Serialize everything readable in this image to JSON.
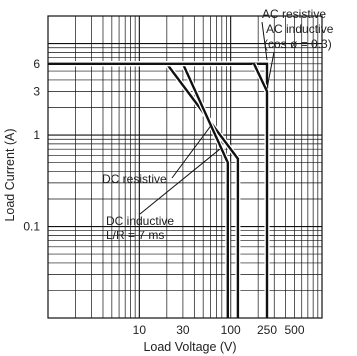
{
  "chart_data": {
    "type": "line",
    "xlabel": "Load Voltage (V)",
    "ylabel": "Load Current (A)",
    "x_scale": "log",
    "y_scale": "log",
    "xlim": [
      1,
      1000
    ],
    "ylim": [
      0.01,
      20
    ],
    "grid": true,
    "x_tick_labels": [
      {
        "value": 10,
        "label": "10"
      },
      {
        "value": 30,
        "label": "30"
      },
      {
        "value": 100,
        "label": "100"
      },
      {
        "value": 250,
        "label": "250"
      },
      {
        "value": 500,
        "label": "500"
      }
    ],
    "y_tick_labels": [
      {
        "value": 6,
        "label": "6"
      },
      {
        "value": 3,
        "label": "3"
      },
      {
        "value": 1,
        "label": "1"
      },
      {
        "value": 0.1,
        "label": "0.1"
      }
    ],
    "series": [
      {
        "name": "DC resistive",
        "x": [
          1,
          20,
          120,
          120
        ],
        "y": [
          6,
          6,
          0.55,
          0.01
        ]
      },
      {
        "name": "DC inductive L/R = 7 ms",
        "x": [
          1,
          30,
          93,
          93
        ],
        "y": [
          6,
          6,
          0.5,
          0.01
        ]
      },
      {
        "name": "AC resistive",
        "x": [
          1,
          250,
          250
        ],
        "y": [
          6,
          6,
          0.01
        ]
      },
      {
        "name": "AC inductive (cos ø = 0.3)",
        "x": [
          180,
          250,
          250
        ],
        "y": [
          6,
          3,
          0.01
        ]
      }
    ],
    "annotations": {
      "ac_resistive": "AC resistive",
      "ac_inductive_1": "AC inductive",
      "ac_inductive_2": "(cos ø = 0.3)",
      "dc_resistive": "DC resistive",
      "dc_inductive_1": "DC inductive",
      "dc_inductive_2": "L/R = 7 ms"
    }
  }
}
